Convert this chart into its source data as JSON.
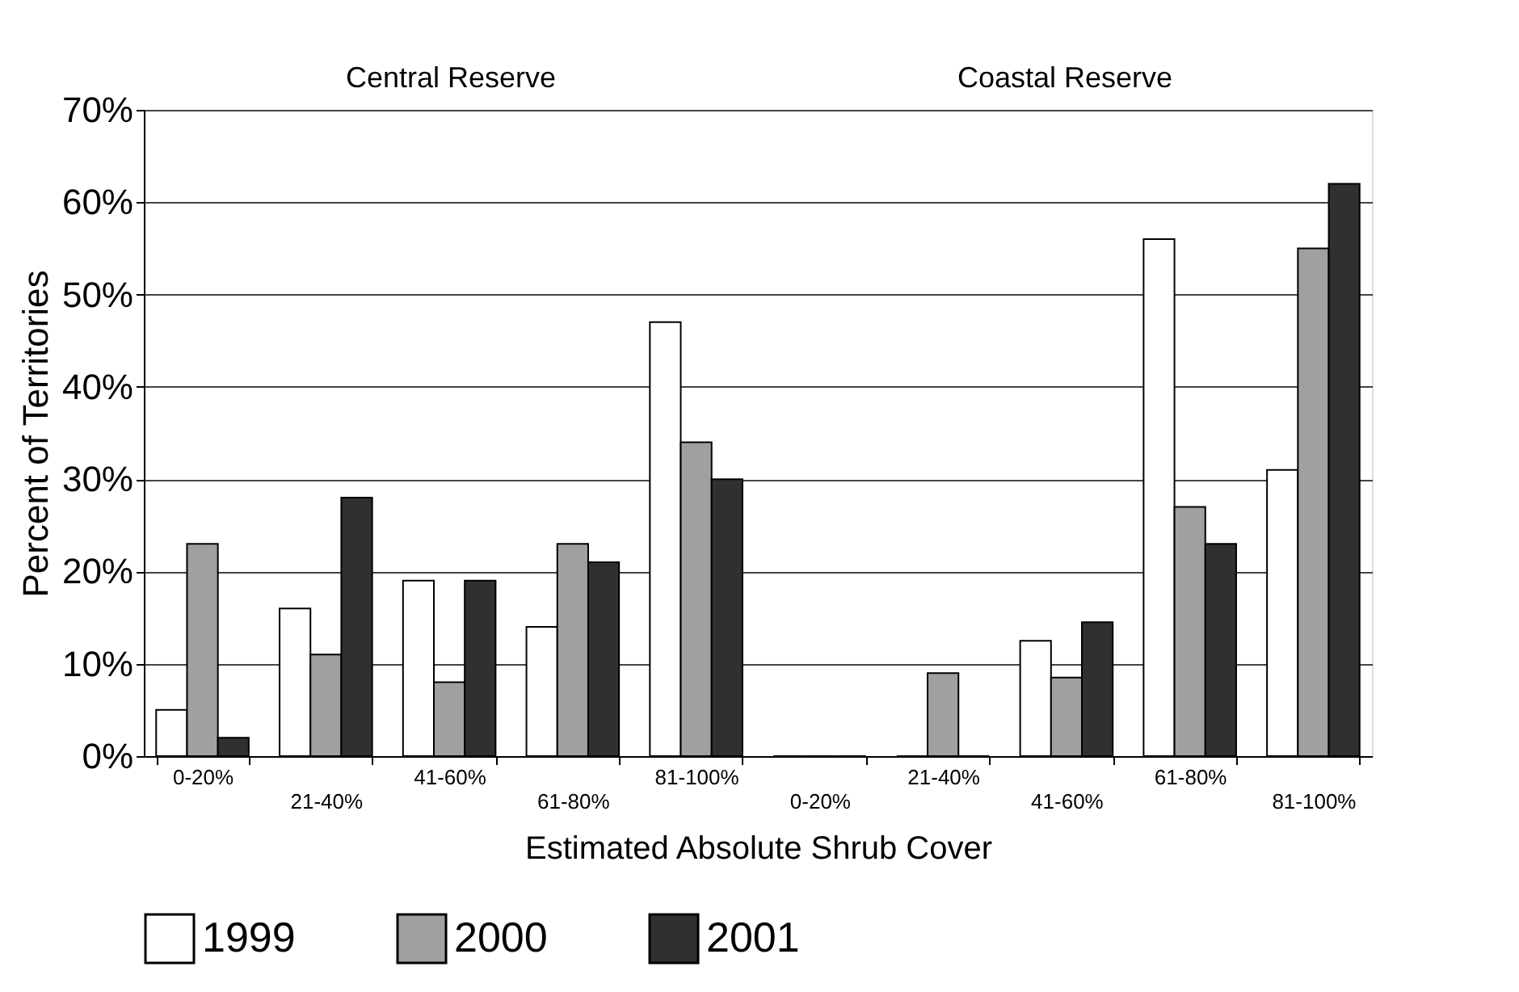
{
  "chart_data": {
    "type": "bar",
    "xlabel": "Estimated Absolute Shrub Cover",
    "ylabel": "Percent of Territories",
    "annotations": [
      "Central Reserve",
      "Coastal Reserve"
    ],
    "categories": [
      "0-20%",
      "21-40%",
      "41-60%",
      "61-80%",
      "81-100%",
      "0-20%",
      "21-40%",
      "41-60%",
      "61-80%",
      "81-100%"
    ],
    "series": [
      {
        "name": "1999",
        "color": "#ffffff",
        "values": [
          5,
          16,
          19,
          14,
          47,
          0,
          0,
          12.5,
          56,
          31
        ]
      },
      {
        "name": "2000",
        "color": "#a0a0a0",
        "values": [
          23,
          11,
          8,
          23,
          34,
          0,
          9,
          8.5,
          27,
          55
        ]
      },
      {
        "name": "2001",
        "color": "#303030",
        "values": [
          2,
          28,
          19,
          21,
          30,
          0,
          0,
          14.5,
          23,
          62
        ]
      }
    ],
    "ylim": [
      0,
      70
    ],
    "yticks": [
      {
        "value": 0,
        "label": "0%"
      },
      {
        "value": 10,
        "label": "10%"
      },
      {
        "value": 20,
        "label": "20%"
      },
      {
        "value": 30,
        "label": "30%"
      },
      {
        "value": 40,
        "label": "40%"
      },
      {
        "value": 50,
        "label": "50%"
      },
      {
        "value": 60,
        "label": "60%"
      },
      {
        "value": 70,
        "label": "70%"
      }
    ],
    "grid": "y",
    "legend": "bottom"
  }
}
